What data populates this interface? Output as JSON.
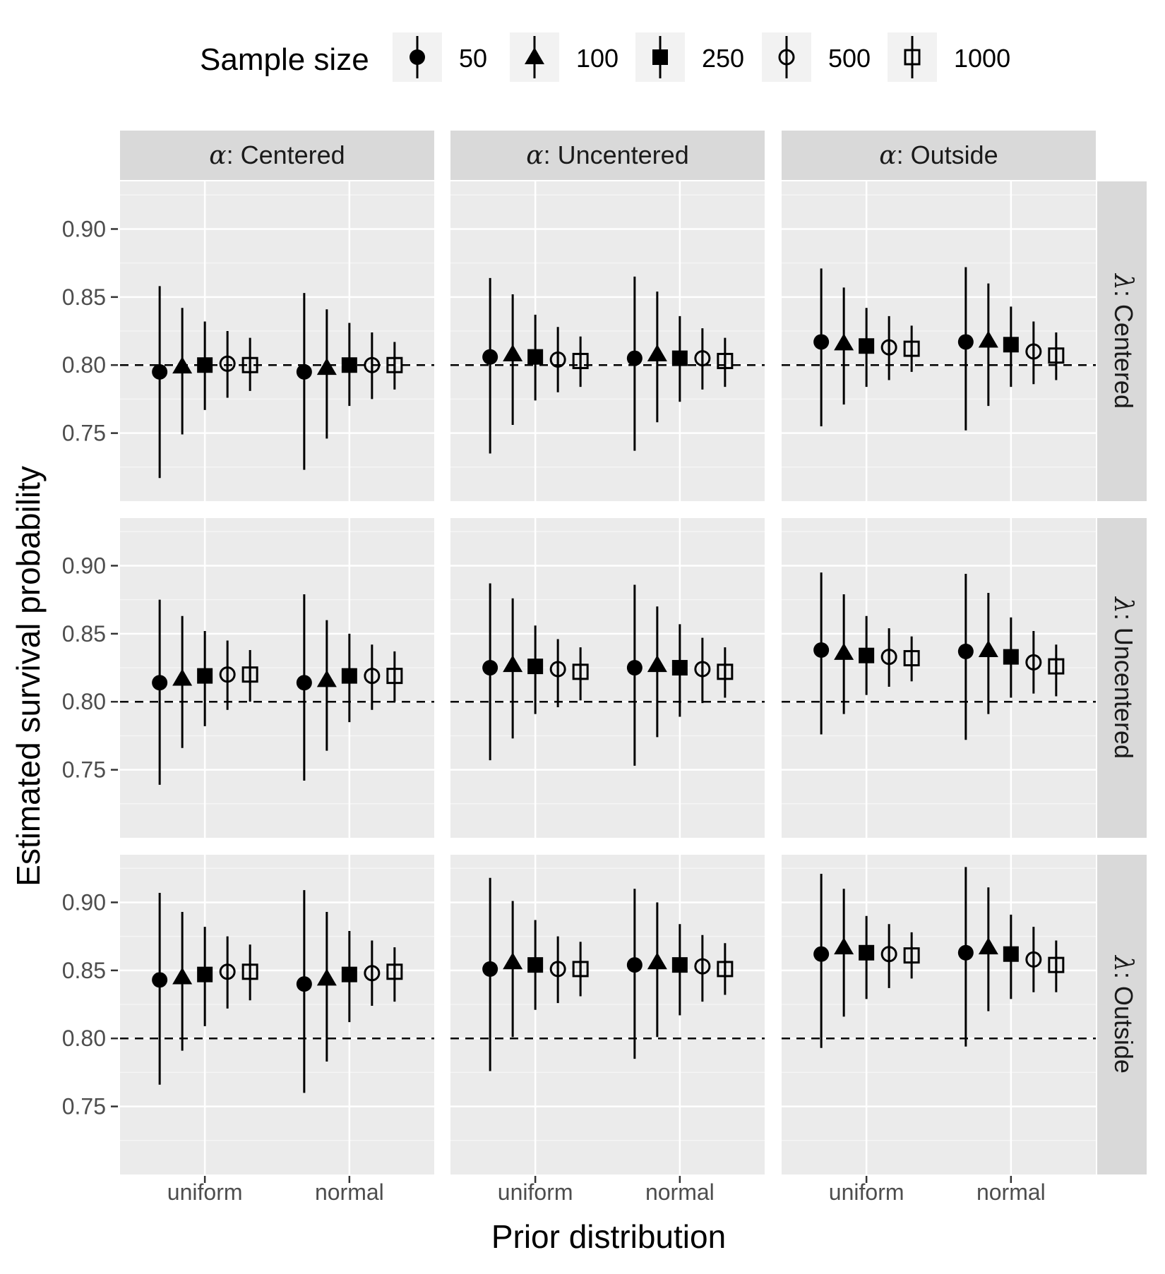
{
  "chart_data": {
    "type": "scatter",
    "subtype": "faceted point-range (estimate with interval)",
    "xlabel": "Prior distribution",
    "ylabel": "Estimated survival probability",
    "x_categories": [
      "uniform",
      "normal"
    ],
    "ylim": [
      0.7,
      0.935
    ],
    "y_ticks": [
      0.75,
      0.8,
      0.85,
      0.9
    ],
    "y_tick_labels": [
      "0.75",
      "0.80",
      "0.85",
      "0.90"
    ],
    "reference_line": {
      "y": 0.8,
      "style": "dashed"
    },
    "grid": true,
    "legend": {
      "title": "Sample size",
      "placement": "top",
      "entries": [
        {
          "label": "50",
          "shape": "filled-circle"
        },
        {
          "label": "100",
          "shape": "filled-triangle"
        },
        {
          "label": "250",
          "shape": "filled-square"
        },
        {
          "label": "500",
          "shape": "open-circle-plus"
        },
        {
          "label": "1000",
          "shape": "open-square-plus"
        }
      ]
    },
    "facet_cols": [
      {
        "prefix": "α",
        "label": ": Centered"
      },
      {
        "prefix": "α",
        "label": ": Uncentered"
      },
      {
        "prefix": "α",
        "label": ": Outside"
      }
    ],
    "facet_rows": [
      {
        "prefix": "λ",
        "label": ": Centered"
      },
      {
        "prefix": "λ",
        "label": ": Uncentered"
      },
      {
        "prefix": "λ",
        "label": ": Outside"
      }
    ],
    "series_order": [
      "50",
      "100",
      "250",
      "500",
      "1000"
    ],
    "panels": [
      {
        "row": 0,
        "col": 0,
        "points": [
          {
            "prior": "uniform",
            "n": "50",
            "est": 0.795,
            "lo": 0.717,
            "hi": 0.858
          },
          {
            "prior": "uniform",
            "n": "100",
            "est": 0.799,
            "lo": 0.749,
            "hi": 0.842
          },
          {
            "prior": "uniform",
            "n": "250",
            "est": 0.8,
            "lo": 0.767,
            "hi": 0.832
          },
          {
            "prior": "uniform",
            "n": "500",
            "est": 0.801,
            "lo": 0.776,
            "hi": 0.825
          },
          {
            "prior": "uniform",
            "n": "1000",
            "est": 0.8,
            "lo": 0.781,
            "hi": 0.82
          },
          {
            "prior": "normal",
            "n": "50",
            "est": 0.795,
            "lo": 0.723,
            "hi": 0.853
          },
          {
            "prior": "normal",
            "n": "100",
            "est": 0.798,
            "lo": 0.746,
            "hi": 0.841
          },
          {
            "prior": "normal",
            "n": "250",
            "est": 0.8,
            "lo": 0.77,
            "hi": 0.831
          },
          {
            "prior": "normal",
            "n": "500",
            "est": 0.8,
            "lo": 0.775,
            "hi": 0.824
          },
          {
            "prior": "normal",
            "n": "1000",
            "est": 0.8,
            "lo": 0.782,
            "hi": 0.817
          }
        ]
      },
      {
        "row": 0,
        "col": 1,
        "points": [
          {
            "prior": "uniform",
            "n": "50",
            "est": 0.806,
            "lo": 0.735,
            "hi": 0.864
          },
          {
            "prior": "uniform",
            "n": "100",
            "est": 0.808,
            "lo": 0.756,
            "hi": 0.852
          },
          {
            "prior": "uniform",
            "n": "250",
            "est": 0.806,
            "lo": 0.774,
            "hi": 0.837
          },
          {
            "prior": "uniform",
            "n": "500",
            "est": 0.804,
            "lo": 0.78,
            "hi": 0.828
          },
          {
            "prior": "uniform",
            "n": "1000",
            "est": 0.803,
            "lo": 0.784,
            "hi": 0.821
          },
          {
            "prior": "normal",
            "n": "50",
            "est": 0.805,
            "lo": 0.737,
            "hi": 0.865
          },
          {
            "prior": "normal",
            "n": "100",
            "est": 0.808,
            "lo": 0.758,
            "hi": 0.854
          },
          {
            "prior": "normal",
            "n": "250",
            "est": 0.805,
            "lo": 0.773,
            "hi": 0.836
          },
          {
            "prior": "normal",
            "n": "500",
            "est": 0.805,
            "lo": 0.782,
            "hi": 0.827
          },
          {
            "prior": "normal",
            "n": "1000",
            "est": 0.803,
            "lo": 0.784,
            "hi": 0.82
          }
        ]
      },
      {
        "row": 0,
        "col": 2,
        "points": [
          {
            "prior": "uniform",
            "n": "50",
            "est": 0.817,
            "lo": 0.755,
            "hi": 0.871
          },
          {
            "prior": "uniform",
            "n": "100",
            "est": 0.816,
            "lo": 0.771,
            "hi": 0.857
          },
          {
            "prior": "uniform",
            "n": "250",
            "est": 0.814,
            "lo": 0.784,
            "hi": 0.842
          },
          {
            "prior": "uniform",
            "n": "500",
            "est": 0.813,
            "lo": 0.789,
            "hi": 0.836
          },
          {
            "prior": "uniform",
            "n": "1000",
            "est": 0.812,
            "lo": 0.795,
            "hi": 0.829
          },
          {
            "prior": "normal",
            "n": "50",
            "est": 0.817,
            "lo": 0.752,
            "hi": 0.872
          },
          {
            "prior": "normal",
            "n": "100",
            "est": 0.818,
            "lo": 0.77,
            "hi": 0.86
          },
          {
            "prior": "normal",
            "n": "250",
            "est": 0.815,
            "lo": 0.784,
            "hi": 0.843
          },
          {
            "prior": "normal",
            "n": "500",
            "est": 0.81,
            "lo": 0.786,
            "hi": 0.832
          },
          {
            "prior": "normal",
            "n": "1000",
            "est": 0.807,
            "lo": 0.789,
            "hi": 0.824
          }
        ]
      },
      {
        "row": 1,
        "col": 0,
        "points": [
          {
            "prior": "uniform",
            "n": "50",
            "est": 0.814,
            "lo": 0.739,
            "hi": 0.875
          },
          {
            "prior": "uniform",
            "n": "100",
            "est": 0.817,
            "lo": 0.766,
            "hi": 0.863
          },
          {
            "prior": "uniform",
            "n": "250",
            "est": 0.819,
            "lo": 0.782,
            "hi": 0.852
          },
          {
            "prior": "uniform",
            "n": "500",
            "est": 0.82,
            "lo": 0.794,
            "hi": 0.845
          },
          {
            "prior": "uniform",
            "n": "1000",
            "est": 0.82,
            "lo": 0.8,
            "hi": 0.838
          },
          {
            "prior": "normal",
            "n": "50",
            "est": 0.814,
            "lo": 0.742,
            "hi": 0.879
          },
          {
            "prior": "normal",
            "n": "100",
            "est": 0.816,
            "lo": 0.764,
            "hi": 0.86
          },
          {
            "prior": "normal",
            "n": "250",
            "est": 0.819,
            "lo": 0.785,
            "hi": 0.85
          },
          {
            "prior": "normal",
            "n": "500",
            "est": 0.819,
            "lo": 0.794,
            "hi": 0.842
          },
          {
            "prior": "normal",
            "n": "1000",
            "est": 0.819,
            "lo": 0.8,
            "hi": 0.837
          }
        ]
      },
      {
        "row": 1,
        "col": 1,
        "points": [
          {
            "prior": "uniform",
            "n": "50",
            "est": 0.825,
            "lo": 0.757,
            "hi": 0.887
          },
          {
            "prior": "uniform",
            "n": "100",
            "est": 0.827,
            "lo": 0.773,
            "hi": 0.876
          },
          {
            "prior": "uniform",
            "n": "250",
            "est": 0.826,
            "lo": 0.791,
            "hi": 0.856
          },
          {
            "prior": "uniform",
            "n": "500",
            "est": 0.824,
            "lo": 0.796,
            "hi": 0.846
          },
          {
            "prior": "uniform",
            "n": "1000",
            "est": 0.822,
            "lo": 0.801,
            "hi": 0.84
          },
          {
            "prior": "normal",
            "n": "50",
            "est": 0.825,
            "lo": 0.753,
            "hi": 0.886
          },
          {
            "prior": "normal",
            "n": "100",
            "est": 0.827,
            "lo": 0.774,
            "hi": 0.87
          },
          {
            "prior": "normal",
            "n": "250",
            "est": 0.825,
            "lo": 0.789,
            "hi": 0.857
          },
          {
            "prior": "normal",
            "n": "500",
            "est": 0.824,
            "lo": 0.799,
            "hi": 0.847
          },
          {
            "prior": "normal",
            "n": "1000",
            "est": 0.822,
            "lo": 0.803,
            "hi": 0.84
          }
        ]
      },
      {
        "row": 1,
        "col": 2,
        "points": [
          {
            "prior": "uniform",
            "n": "50",
            "est": 0.838,
            "lo": 0.776,
            "hi": 0.895
          },
          {
            "prior": "uniform",
            "n": "100",
            "est": 0.836,
            "lo": 0.791,
            "hi": 0.879
          },
          {
            "prior": "uniform",
            "n": "250",
            "est": 0.834,
            "lo": 0.805,
            "hi": 0.863
          },
          {
            "prior": "uniform",
            "n": "500",
            "est": 0.833,
            "lo": 0.811,
            "hi": 0.854
          },
          {
            "prior": "uniform",
            "n": "1000",
            "est": 0.832,
            "lo": 0.815,
            "hi": 0.848
          },
          {
            "prior": "normal",
            "n": "50",
            "est": 0.837,
            "lo": 0.772,
            "hi": 0.894
          },
          {
            "prior": "normal",
            "n": "100",
            "est": 0.838,
            "lo": 0.791,
            "hi": 0.88
          },
          {
            "prior": "normal",
            "n": "250",
            "est": 0.833,
            "lo": 0.803,
            "hi": 0.862
          },
          {
            "prior": "normal",
            "n": "500",
            "est": 0.829,
            "lo": 0.806,
            "hi": 0.852
          },
          {
            "prior": "normal",
            "n": "1000",
            "est": 0.826,
            "lo": 0.804,
            "hi": 0.842
          }
        ]
      },
      {
        "row": 2,
        "col": 0,
        "points": [
          {
            "prior": "uniform",
            "n": "50",
            "est": 0.843,
            "lo": 0.766,
            "hi": 0.907
          },
          {
            "prior": "uniform",
            "n": "100",
            "est": 0.845,
            "lo": 0.791,
            "hi": 0.893
          },
          {
            "prior": "uniform",
            "n": "250",
            "est": 0.847,
            "lo": 0.809,
            "hi": 0.882
          },
          {
            "prior": "uniform",
            "n": "500",
            "est": 0.849,
            "lo": 0.822,
            "hi": 0.875
          },
          {
            "prior": "uniform",
            "n": "1000",
            "est": 0.849,
            "lo": 0.828,
            "hi": 0.869
          },
          {
            "prior": "normal",
            "n": "50",
            "est": 0.84,
            "lo": 0.76,
            "hi": 0.909
          },
          {
            "prior": "normal",
            "n": "100",
            "est": 0.844,
            "lo": 0.783,
            "hi": 0.893
          },
          {
            "prior": "normal",
            "n": "250",
            "est": 0.847,
            "lo": 0.812,
            "hi": 0.879
          },
          {
            "prior": "normal",
            "n": "500",
            "est": 0.848,
            "lo": 0.824,
            "hi": 0.872
          },
          {
            "prior": "normal",
            "n": "1000",
            "est": 0.849,
            "lo": 0.827,
            "hi": 0.867
          }
        ]
      },
      {
        "row": 2,
        "col": 1,
        "points": [
          {
            "prior": "uniform",
            "n": "50",
            "est": 0.851,
            "lo": 0.776,
            "hi": 0.918
          },
          {
            "prior": "uniform",
            "n": "100",
            "est": 0.856,
            "lo": 0.801,
            "hi": 0.901
          },
          {
            "prior": "uniform",
            "n": "250",
            "est": 0.854,
            "lo": 0.821,
            "hi": 0.887
          },
          {
            "prior": "uniform",
            "n": "500",
            "est": 0.851,
            "lo": 0.826,
            "hi": 0.875
          },
          {
            "prior": "uniform",
            "n": "1000",
            "est": 0.851,
            "lo": 0.831,
            "hi": 0.871
          },
          {
            "prior": "normal",
            "n": "50",
            "est": 0.854,
            "lo": 0.785,
            "hi": 0.91
          },
          {
            "prior": "normal",
            "n": "100",
            "est": 0.856,
            "lo": 0.801,
            "hi": 0.9
          },
          {
            "prior": "normal",
            "n": "250",
            "est": 0.854,
            "lo": 0.817,
            "hi": 0.884
          },
          {
            "prior": "normal",
            "n": "500",
            "est": 0.853,
            "lo": 0.827,
            "hi": 0.876
          },
          {
            "prior": "normal",
            "n": "1000",
            "est": 0.851,
            "lo": 0.832,
            "hi": 0.87
          }
        ]
      },
      {
        "row": 2,
        "col": 2,
        "points": [
          {
            "prior": "uniform",
            "n": "50",
            "est": 0.862,
            "lo": 0.793,
            "hi": 0.921
          },
          {
            "prior": "uniform",
            "n": "100",
            "est": 0.867,
            "lo": 0.816,
            "hi": 0.91
          },
          {
            "prior": "uniform",
            "n": "250",
            "est": 0.863,
            "lo": 0.829,
            "hi": 0.89
          },
          {
            "prior": "uniform",
            "n": "500",
            "est": 0.862,
            "lo": 0.837,
            "hi": 0.884
          },
          {
            "prior": "uniform",
            "n": "1000",
            "est": 0.861,
            "lo": 0.844,
            "hi": 0.878
          },
          {
            "prior": "normal",
            "n": "50",
            "est": 0.863,
            "lo": 0.794,
            "hi": 0.926
          },
          {
            "prior": "normal",
            "n": "100",
            "est": 0.867,
            "lo": 0.82,
            "hi": 0.911
          },
          {
            "prior": "normal",
            "n": "250",
            "est": 0.862,
            "lo": 0.829,
            "hi": 0.891
          },
          {
            "prior": "normal",
            "n": "500",
            "est": 0.858,
            "lo": 0.834,
            "hi": 0.882
          },
          {
            "prior": "normal",
            "n": "1000",
            "est": 0.854,
            "lo": 0.834,
            "hi": 0.872
          }
        ]
      }
    ]
  },
  "colors": {
    "panel_background": "#ebebeb",
    "grid_major": "#ffffff",
    "grid_minor": "#f5f5f5",
    "strip_background": "#d9d9d9",
    "legend_key_background": "#f2f2f2",
    "marks": "#000000",
    "strip_text": "#1a1a1a",
    "tick_text": "#4d4d4d"
  }
}
